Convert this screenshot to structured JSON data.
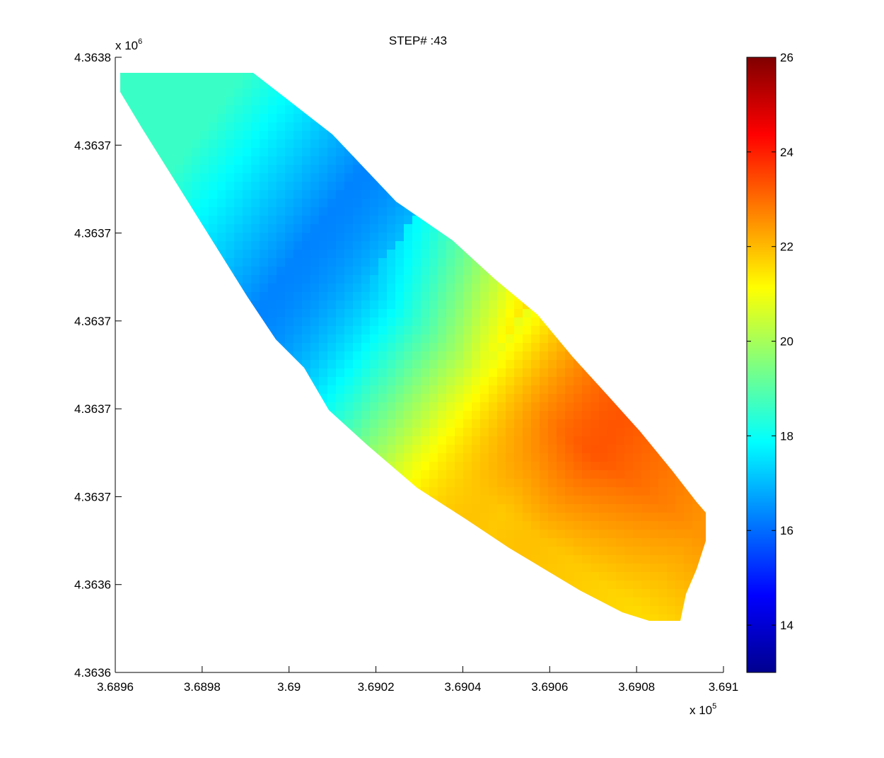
{
  "figure": {
    "title": "STEP# :43",
    "x_exponent_base": "x 10",
    "x_exponent_power": "5",
    "y_exponent_base": "x 10",
    "y_exponent_power": "6"
  },
  "chart_data": {
    "type": "heatmap",
    "title": "STEP# :43",
    "xlabel": "",
    "ylabel": "",
    "xlim": [
      3.6896,
      3.691
    ],
    "ylim": [
      4.3636,
      4.3638
    ],
    "x_multiplier": "x 10^5",
    "y_multiplier": "x 10^6",
    "x_tick_labels": [
      "3.6896",
      "3.6898",
      "3.69",
      "3.6902",
      "3.6904",
      "3.6906",
      "3.6908",
      "3.691"
    ],
    "y_tick_labels": [
      "4.3638",
      "4.3637",
      "4.3637",
      "4.3637",
      "4.3637",
      "4.3637",
      "4.3636",
      "4.3636"
    ],
    "colormap": "jet",
    "colorbar": {
      "range": [
        13,
        26
      ],
      "tick_values": [
        14,
        16,
        18,
        20,
        22,
        24,
        26
      ],
      "tick_labels": [
        "26",
        "24",
        "22",
        "20",
        "18",
        "16",
        "14"
      ]
    },
    "field": {
      "region": "diagonal band from upper-left to lower-right",
      "minimum": {
        "value": 16.3,
        "x": 3.69004,
        "y": 4.36374
      },
      "maximum": {
        "value": 23.3,
        "x": 3.69071,
        "y": 4.36367
      },
      "upper_left_end_value": 18.6,
      "lower_right_end_value": 22.5,
      "lower_edge_value": 21.0
    }
  }
}
